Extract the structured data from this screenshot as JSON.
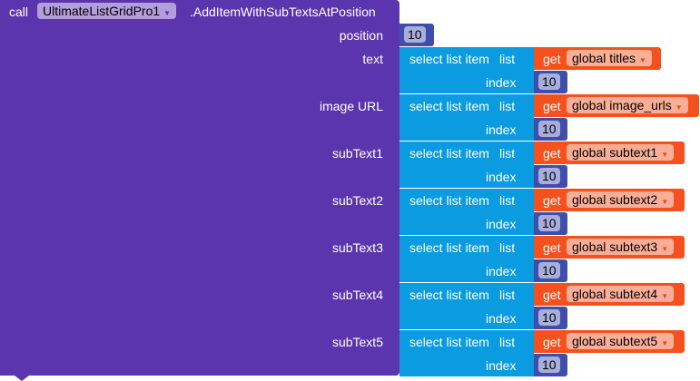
{
  "block": {
    "call_label": "call",
    "component": "UltimateListGridPro1",
    "method": ".AddItemWithSubTextsAtPosition",
    "position_label": "position",
    "position_value": "10",
    "colors": {
      "procedure": "#5b35ad",
      "select": "#0a9be1",
      "get": "#f4511e",
      "number": "#3f4eab"
    },
    "select_label": "select list item",
    "list_label": "list",
    "index_label": "index",
    "get_label": "get",
    "rows": [
      {
        "param": "text",
        "variable": "global titles",
        "index": "10"
      },
      {
        "param": "image URL",
        "variable": "global image_urls",
        "index": "10"
      },
      {
        "param": "subText1",
        "variable": "global subtext1",
        "index": "10"
      },
      {
        "param": "subText2",
        "variable": "global subtext2",
        "index": "10"
      },
      {
        "param": "subText3",
        "variable": "global subtext3",
        "index": "10"
      },
      {
        "param": "subText4",
        "variable": "global subtext4",
        "index": "10"
      },
      {
        "param": "subText5",
        "variable": "global subtext5",
        "index": "10"
      }
    ]
  }
}
